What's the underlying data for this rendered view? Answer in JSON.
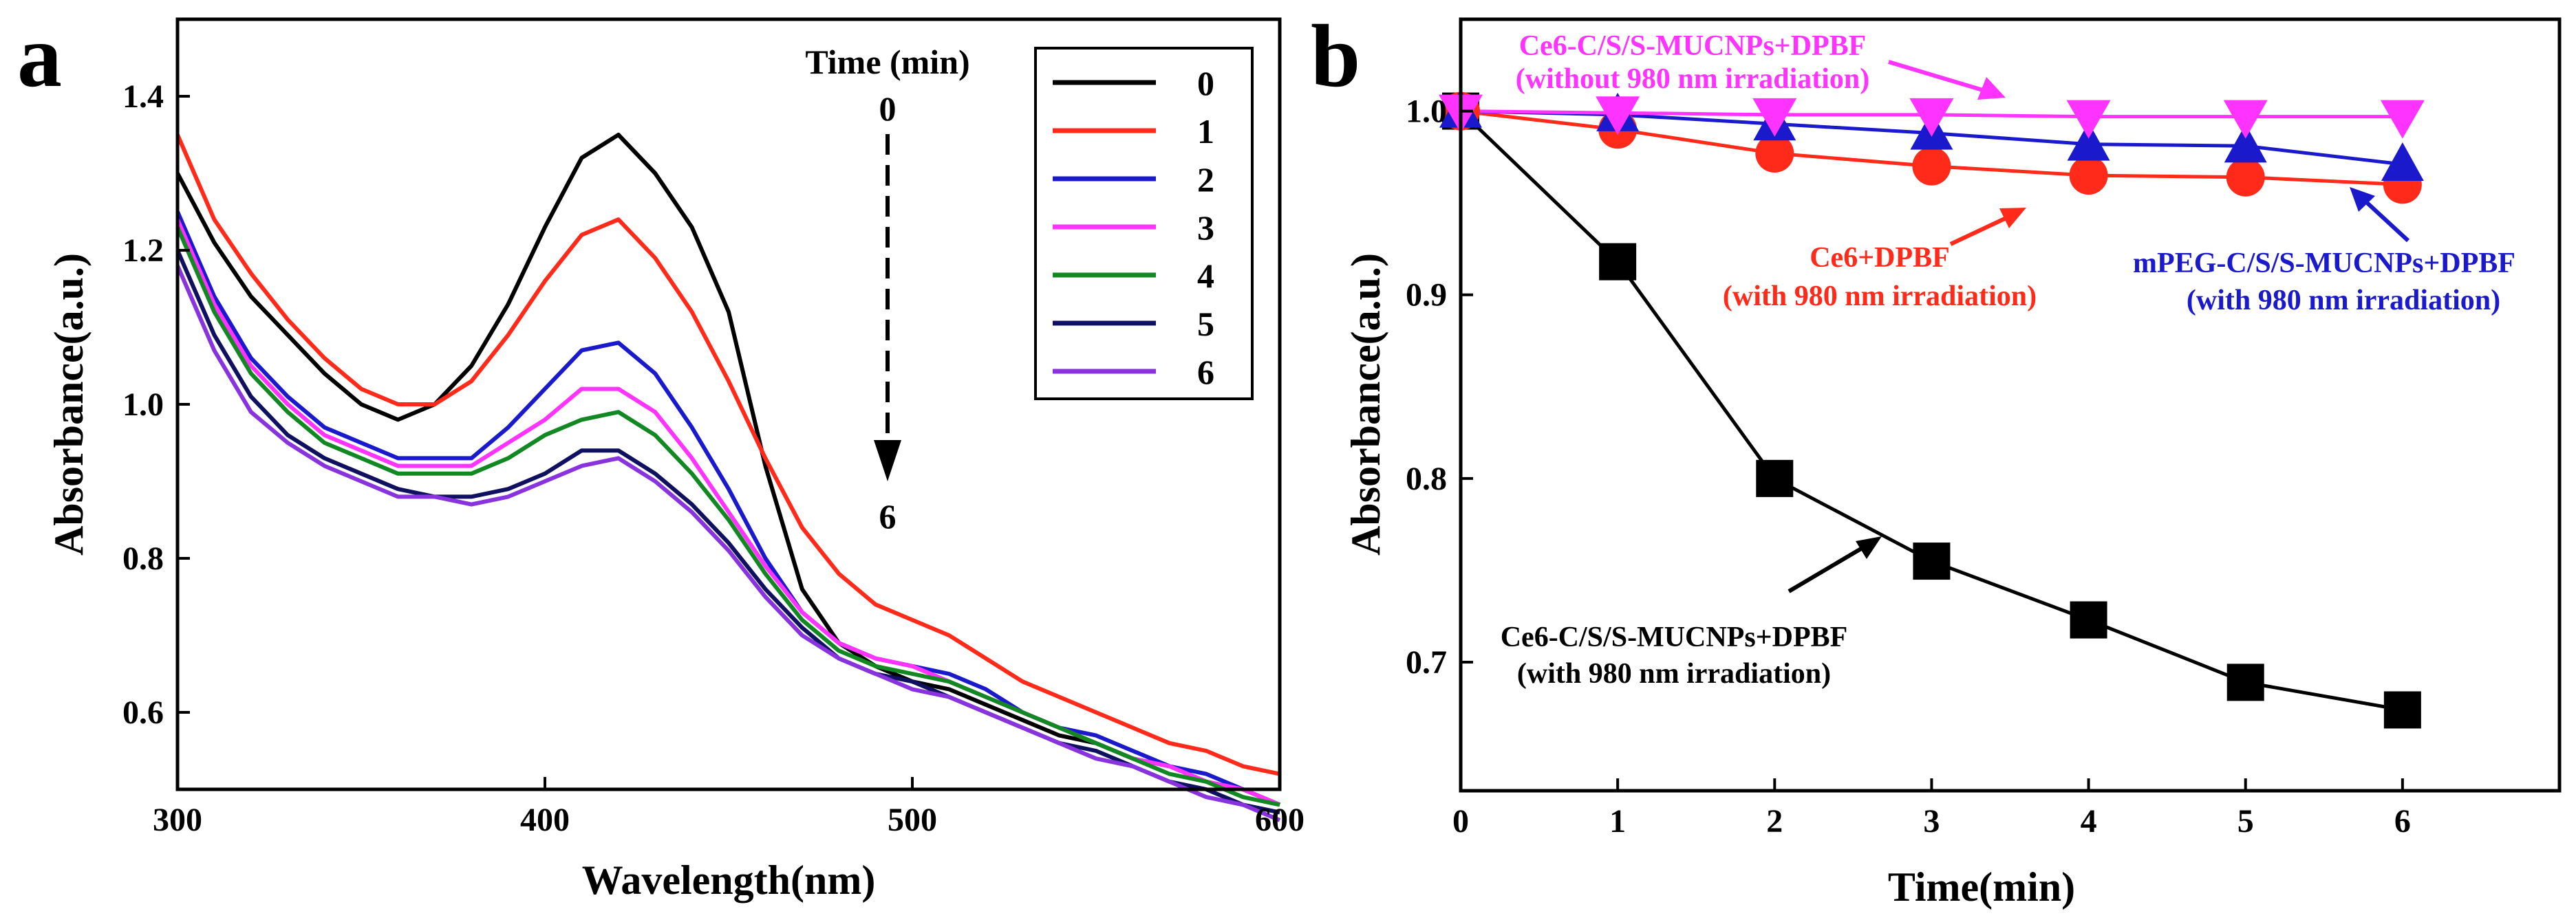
{
  "panels": [
    {
      "letter": "a"
    },
    {
      "letter": "b"
    }
  ],
  "chart_data": [
    {
      "type": "line",
      "panel": "a",
      "title": "",
      "xlabel": "Wavelength(nm)",
      "ylabel": "Absorbance(a.u.)",
      "xlim": [
        300,
        600
      ],
      "ylim": [
        0.5,
        1.5
      ],
      "xticks": [
        300,
        400,
        500,
        600
      ],
      "yticks": [
        0.6,
        0.8,
        1.0,
        1.2,
        1.4
      ],
      "legend_position": "top-right",
      "annotation": {
        "title": "Time (min)",
        "start": "0",
        "end": "6"
      },
      "x": [
        300,
        310,
        320,
        330,
        340,
        350,
        360,
        370,
        380,
        390,
        400,
        410,
        420,
        430,
        440,
        450,
        460,
        470,
        480,
        490,
        500,
        510,
        520,
        530,
        540,
        550,
        560,
        570,
        580,
        590,
        600
      ],
      "series": [
        {
          "name": "0",
          "color": "#000000",
          "values": [
            1.3,
            1.21,
            1.14,
            1.09,
            1.04,
            1.0,
            0.98,
            1.0,
            1.05,
            1.13,
            1.23,
            1.32,
            1.35,
            1.3,
            1.23,
            1.12,
            0.92,
            0.76,
            0.69,
            0.66,
            0.64,
            0.63,
            0.61,
            0.59,
            0.57,
            0.56,
            0.54,
            0.53,
            0.51,
            0.5,
            0.48
          ]
        },
        {
          "name": "1",
          "color": "#ff2a1a",
          "values": [
            1.35,
            1.24,
            1.17,
            1.11,
            1.06,
            1.02,
            1.0,
            1.0,
            1.03,
            1.09,
            1.16,
            1.22,
            1.24,
            1.19,
            1.12,
            1.03,
            0.93,
            0.84,
            0.78,
            0.74,
            0.72,
            0.7,
            0.67,
            0.64,
            0.62,
            0.6,
            0.58,
            0.56,
            0.55,
            0.53,
            0.52
          ]
        },
        {
          "name": "2",
          "color": "#1a1acc",
          "values": [
            1.25,
            1.14,
            1.06,
            1.01,
            0.97,
            0.95,
            0.93,
            0.93,
            0.93,
            0.97,
            1.02,
            1.07,
            1.08,
            1.04,
            0.97,
            0.89,
            0.8,
            0.73,
            0.69,
            0.67,
            0.66,
            0.65,
            0.63,
            0.6,
            0.58,
            0.57,
            0.55,
            0.53,
            0.52,
            0.5,
            0.48
          ]
        },
        {
          "name": "3",
          "color": "#ff33ff",
          "values": [
            1.24,
            1.13,
            1.05,
            1.0,
            0.96,
            0.94,
            0.92,
            0.92,
            0.92,
            0.95,
            0.98,
            1.02,
            1.02,
            0.99,
            0.93,
            0.86,
            0.79,
            0.73,
            0.69,
            0.67,
            0.66,
            0.64,
            0.62,
            0.6,
            0.58,
            0.56,
            0.54,
            0.53,
            0.51,
            0.5,
            0.48
          ]
        },
        {
          "name": "4",
          "color": "#118822",
          "values": [
            1.23,
            1.12,
            1.04,
            0.99,
            0.95,
            0.93,
            0.91,
            0.91,
            0.91,
            0.93,
            0.96,
            0.98,
            0.99,
            0.96,
            0.91,
            0.85,
            0.78,
            0.72,
            0.68,
            0.66,
            0.65,
            0.64,
            0.62,
            0.6,
            0.58,
            0.56,
            0.54,
            0.52,
            0.51,
            0.49,
            0.48
          ]
        },
        {
          "name": "5",
          "color": "#101060",
          "values": [
            1.2,
            1.09,
            1.01,
            0.96,
            0.93,
            0.91,
            0.89,
            0.88,
            0.88,
            0.89,
            0.91,
            0.94,
            0.94,
            0.91,
            0.87,
            0.82,
            0.76,
            0.71,
            0.67,
            0.65,
            0.64,
            0.62,
            0.6,
            0.58,
            0.56,
            0.55,
            0.53,
            0.51,
            0.5,
            0.48,
            0.47
          ]
        },
        {
          "name": "6",
          "color": "#8833dd",
          "values": [
            1.18,
            1.07,
            0.99,
            0.95,
            0.92,
            0.9,
            0.88,
            0.88,
            0.87,
            0.88,
            0.9,
            0.92,
            0.93,
            0.9,
            0.86,
            0.81,
            0.75,
            0.7,
            0.67,
            0.65,
            0.63,
            0.62,
            0.6,
            0.58,
            0.56,
            0.54,
            0.53,
            0.51,
            0.49,
            0.48,
            0.46
          ]
        }
      ]
    },
    {
      "type": "line",
      "panel": "b",
      "title": "",
      "xlabel": "Time(min)",
      "ylabel": "Absorbance(a.u.)",
      "xlim": [
        0,
        7
      ],
      "ylim": [
        0.63,
        1.05
      ],
      "xticks": [
        0,
        1,
        2,
        3,
        4,
        5,
        6
      ],
      "yticks": [
        0.7,
        0.8,
        0.9,
        1.0
      ],
      "x": [
        0,
        1,
        2,
        3,
        4,
        5,
        6
      ],
      "series": [
        {
          "name": "Ce6-C/S/S-MUCNPs+DPBF (with 980 nm irradiation)",
          "color": "#000000",
          "marker": "square",
          "values": [
            1.0,
            0.918,
            0.8,
            0.755,
            0.723,
            0.689,
            0.674
          ]
        },
        {
          "name": "Ce6+DPBF (with 980 nm irradiation)",
          "color": "#ff2a1a",
          "marker": "circle",
          "values": [
            1.0,
            0.99,
            0.977,
            0.97,
            0.965,
            0.964,
            0.96
          ]
        },
        {
          "name": "mPEG-C/S/S-MUCNPs+DPBF (with 980 nm irradiation)",
          "color": "#1a1acc",
          "marker": "triangle-up",
          "values": [
            1.0,
            0.998,
            0.993,
            0.988,
            0.982,
            0.981,
            0.971
          ]
        },
        {
          "name": "Ce6-C/S/S-MUCNPs+DPBF (without 980 nm irradiation)",
          "color": "#ff33ff",
          "marker": "triangle-down",
          "values": [
            1.0,
            0.999,
            0.998,
            0.998,
            0.997,
            0.997,
            0.997
          ]
        }
      ],
      "annotations": [
        {
          "series": 3,
          "line1": "Ce6-C/S/S-MUCNPs+DPBF",
          "line2": "(without 980 nm irradiation)"
        },
        {
          "series": 1,
          "line1": "Ce6+DPBF",
          "line2": "(with 980 nm irradiation)"
        },
        {
          "series": 2,
          "line1": "mPEG-C/S/S-MUCNPs+DPBF",
          "line2": "(with 980 nm irradiation)"
        },
        {
          "series": 0,
          "line1": "Ce6-C/S/S-MUCNPs+DPBF",
          "line2": "(with 980 nm irradiation)"
        }
      ]
    }
  ]
}
